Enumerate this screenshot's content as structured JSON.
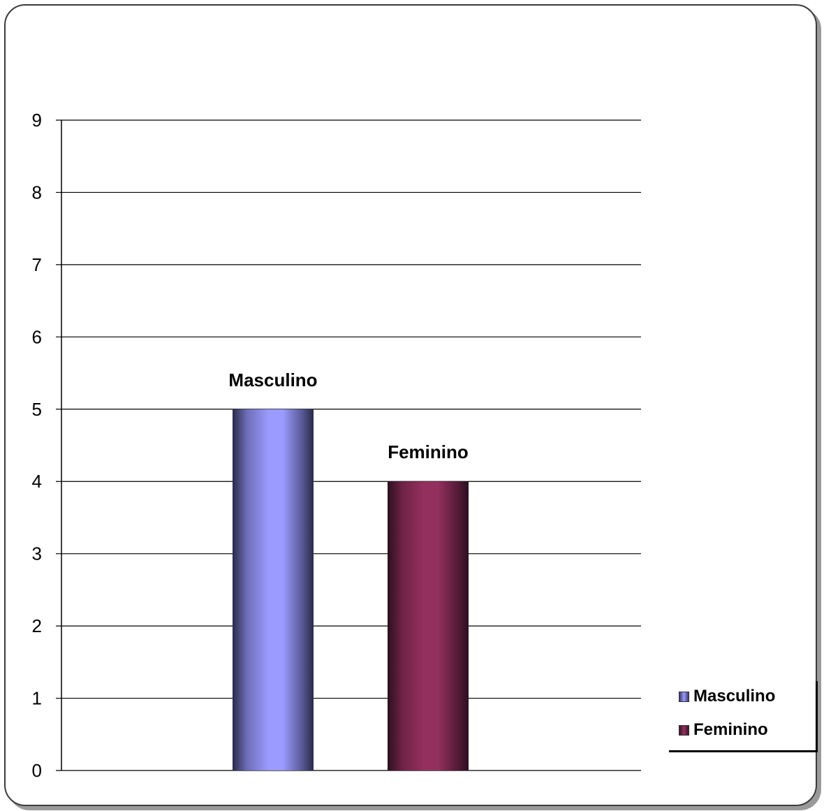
{
  "chart_data": {
    "type": "bar",
    "categories": [
      "Masculino",
      "Feminino"
    ],
    "values": [
      5,
      4
    ],
    "colors": [
      "#9b9bff",
      "#94305e"
    ],
    "data_labels": [
      "Masculino",
      "Feminino"
    ],
    "ylim": [
      0,
      9
    ],
    "yticks": [
      "0",
      "1",
      "2",
      "3",
      "4",
      "5",
      "6",
      "7",
      "8",
      "9"
    ],
    "grid": true,
    "legend": {
      "placement": "bottom-right",
      "entries": [
        {
          "label": "Masculino",
          "color": "#9b9bff"
        },
        {
          "label": "Feminino",
          "color": "#94305e"
        }
      ]
    }
  }
}
